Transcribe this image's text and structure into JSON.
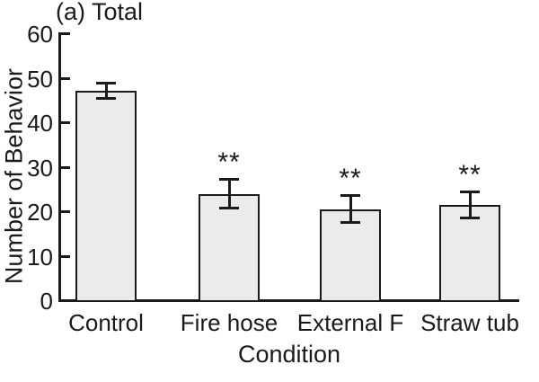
{
  "chart_data": {
    "type": "bar",
    "title": "(a) Total",
    "xlabel": "Condition",
    "ylabel": "Number of Behavior",
    "categories": [
      "Control",
      "Fire hose",
      "External F",
      "Straw tub"
    ],
    "values": [
      46.8,
      23.7,
      20.3,
      21.2
    ],
    "error_bars": [
      1.8,
      3.3,
      3.1,
      3.1
    ],
    "significance": [
      "",
      "**",
      "**",
      "**"
    ],
    "ylim": [
      0,
      60
    ],
    "yticks": [
      "0",
      "10",
      "20",
      "30",
      "40",
      "50",
      "60"
    ],
    "grid": false,
    "legend": "none",
    "bar_fill_color": "#ebebeb",
    "line_color": "#1a1a1a",
    "background_color": "#ffffff"
  }
}
